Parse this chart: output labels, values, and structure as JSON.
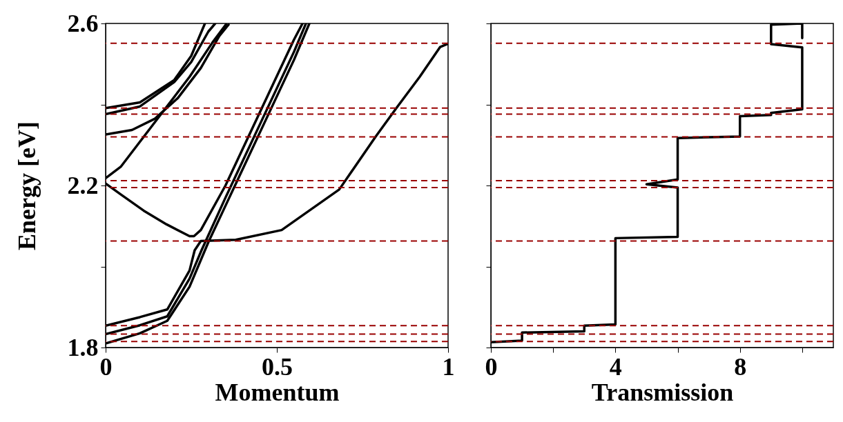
{
  "chart_data": [
    {
      "type": "line",
      "xlabel": "Momentum",
      "ylabel": "Energy [eV]",
      "xlim": [
        0,
        1
      ],
      "xticks": [
        0,
        0.5,
        1
      ],
      "ylim": [
        1.8,
        2.6
      ],
      "yticks": [
        1.8,
        {
          "value": 2.0,
          "label": null
        },
        2.2,
        {
          "value": 2.4,
          "label": null
        },
        2.6
      ],
      "series": [
        {
          "color": "#000000",
          "x": [
            0,
            0.1,
            0.18,
            0.245,
            0.3,
            0.35,
            0.45,
            0.55,
            0.595
          ],
          "values": [
            1.81,
            1.835,
            1.866,
            1.95,
            2.06,
            2.15,
            2.33,
            2.51,
            2.6
          ]
        },
        {
          "color": "#000000",
          "x": [
            0,
            0.1,
            0.18,
            0.245,
            0.28,
            0.35,
            0.45,
            0.55,
            0.585
          ],
          "values": [
            1.833,
            1.855,
            1.877,
            1.97,
            2.04,
            2.17,
            2.35,
            2.53,
            2.6
          ]
        },
        {
          "color": "#000000",
          "x": [
            0,
            0.1,
            0.18,
            0.245,
            0.26,
            0.278,
            0.38,
            0.514,
            0.682,
            0.788,
            0.849,
            0.917,
            0.977,
            1
          ],
          "values": [
            1.854,
            1.875,
            1.894,
            1.99,
            2.04,
            2.063,
            2.066,
            2.09,
            2.19,
            2.32,
            2.391,
            2.468,
            2.542,
            2.55
          ]
        },
        {
          "color": "#000000",
          "x": [
            0,
            0.044,
            0.111,
            0.178,
            0.245,
            0.258,
            0.278,
            0.35,
            0.45,
            0.55,
            0.575
          ],
          "values": [
            2.205,
            2.178,
            2.138,
            2.104,
            2.075,
            2.075,
            2.09,
            2.2,
            2.38,
            2.56,
            2.6
          ]
        },
        {
          "color": "#000000",
          "x": [
            0,
            0.044,
            0.111,
            0.178,
            0.245,
            0.312,
            0.352
          ],
          "values": [
            2.218,
            2.246,
            2.32,
            2.394,
            2.468,
            2.553,
            2.598
          ]
        },
        {
          "color": "#000000",
          "x": [
            0,
            0.077,
            0.144,
            0.211,
            0.278,
            0.332,
            0.359
          ],
          "values": [
            2.326,
            2.337,
            2.365,
            2.416,
            2.49,
            2.569,
            2.597
          ]
        },
        {
          "color": "#000000",
          "x": [
            0,
            0.1,
            0.2,
            0.25,
            0.3,
            0.32
          ],
          "values": [
            2.376,
            2.395,
            2.455,
            2.505,
            2.58,
            2.6
          ]
        },
        {
          "color": "#000000",
          "x": [
            0,
            0.1,
            0.2,
            0.25,
            0.29
          ],
          "values": [
            2.391,
            2.405,
            2.46,
            2.52,
            2.6
          ]
        }
      ],
      "ref_lines": [
        {
          "axis": "y",
          "value": 1.815,
          "color": "#990000",
          "line_style": "dashed"
        },
        {
          "axis": "y",
          "value": 1.833,
          "color": "#990000",
          "line_style": "dashed"
        },
        {
          "axis": "y",
          "value": 1.854,
          "color": "#990000",
          "line_style": "dashed"
        },
        {
          "axis": "y",
          "value": 2.063,
          "color": "#990000",
          "line_style": "dashed"
        },
        {
          "axis": "y",
          "value": 2.195,
          "color": "#990000",
          "line_style": "dashed"
        },
        {
          "axis": "y",
          "value": 2.212,
          "color": "#990000",
          "line_style": "dashed"
        },
        {
          "axis": "y",
          "value": 2.32,
          "color": "#990000",
          "line_style": "dashed"
        },
        {
          "axis": "y",
          "value": 2.376,
          "color": "#990000",
          "line_style": "dashed"
        },
        {
          "axis": "y",
          "value": 2.391,
          "color": "#990000",
          "line_style": "dashed"
        },
        {
          "axis": "y",
          "value": 2.551,
          "color": "#990000",
          "line_style": "dashed"
        }
      ]
    },
    {
      "type": "line",
      "xlabel": "Transmission",
      "xlim": [
        0,
        11
      ],
      "xticks": [
        0,
        {
          "value": 2,
          "label": null
        },
        4,
        {
          "value": 6,
          "label": null
        },
        8,
        {
          "value": 10,
          "label": null
        }
      ],
      "ylim": [
        1.8,
        2.6
      ],
      "yticks": [
        1.8,
        2.0,
        2.2,
        2.4,
        2.6
      ],
      "tick_labels": "x",
      "series": [
        {
          "color": "#000000",
          "x": [
            0,
            1,
            1,
            3,
            3,
            4,
            4,
            6,
            6,
            5,
            6,
            6,
            8,
            8,
            9,
            9,
            10,
            10,
            9,
            9,
            10,
            10
          ],
          "values": [
            1.813,
            1.817,
            1.837,
            1.84,
            1.854,
            1.857,
            2.07,
            2.073,
            2.195,
            2.203,
            2.215,
            2.317,
            2.321,
            2.371,
            2.374,
            2.379,
            2.388,
            2.541,
            2.549,
            2.597,
            2.6,
            2.564
          ]
        }
      ],
      "ref_lines": [
        {
          "axis": "y",
          "value": 1.815,
          "color": "#990000",
          "line_style": "dashed"
        },
        {
          "axis": "y",
          "value": 1.833,
          "color": "#990000",
          "line_style": "dashed"
        },
        {
          "axis": "y",
          "value": 1.854,
          "color": "#990000",
          "line_style": "dashed"
        },
        {
          "axis": "y",
          "value": 2.063,
          "color": "#990000",
          "line_style": "dashed"
        },
        {
          "axis": "y",
          "value": 2.195,
          "color": "#990000",
          "line_style": "dashed"
        },
        {
          "axis": "y",
          "value": 2.212,
          "color": "#990000",
          "line_style": "dashed"
        },
        {
          "axis": "y",
          "value": 2.32,
          "color": "#990000",
          "line_style": "dashed"
        },
        {
          "axis": "y",
          "value": 2.376,
          "color": "#990000",
          "line_style": "dashed"
        },
        {
          "axis": "y",
          "value": 2.391,
          "color": "#990000",
          "line_style": "dashed"
        },
        {
          "axis": "y",
          "value": 2.551,
          "color": "#990000",
          "line_style": "dashed"
        }
      ]
    }
  ]
}
